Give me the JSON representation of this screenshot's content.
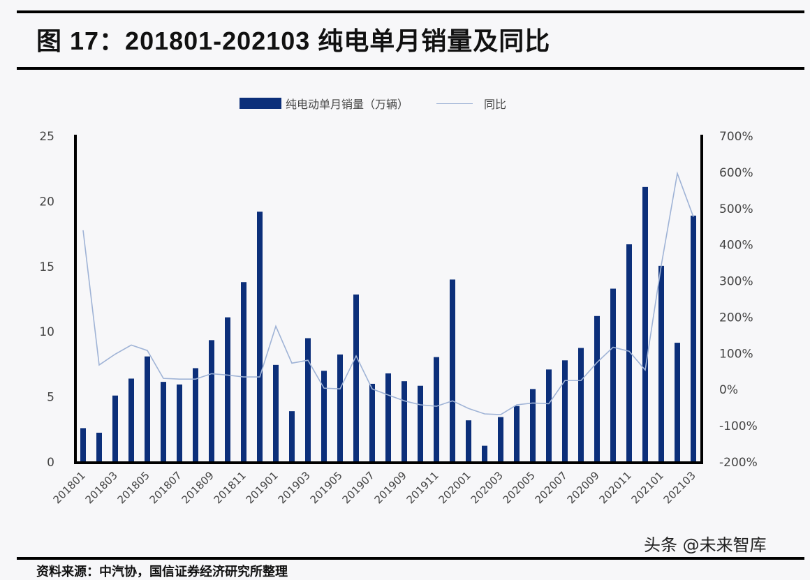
{
  "title": "图 17：201801-202103 纯电单月销量及同比",
  "legend": {
    "bar_label": "纯电动单月销量（万辆）",
    "line_label": "同比"
  },
  "watermark": "头条 @未来智库",
  "source": "资料来源：中汽协，国信证券经济研究所整理",
  "colors": {
    "bar": "#0c2f7a",
    "line": "#9fb3d6",
    "axis": "#000000",
    "text": "#444444"
  },
  "chart_data": {
    "type": "bar",
    "title": "201801-202103 纯电单月销量及同比",
    "xlabel": "",
    "ylabel": "纯电动单月销量（万辆）",
    "y2label": "同比",
    "ylim": [
      0,
      25
    ],
    "y2lim": [
      -200,
      700
    ],
    "yticks": [
      "0",
      "5",
      "10",
      "15",
      "20",
      "25"
    ],
    "y2ticks": [
      "-200%",
      "-100%",
      "0%",
      "100%",
      "200%",
      "300%",
      "400%",
      "500%",
      "600%",
      "700%"
    ],
    "xtick_labels": [
      "201801",
      "201803",
      "201805",
      "201807",
      "201809",
      "201811",
      "201901",
      "201903",
      "201905",
      "201907",
      "201909",
      "201911",
      "202001",
      "202003",
      "202005",
      "202007",
      "202009",
      "202011",
      "202101",
      "202103"
    ],
    "categories": [
      "201801",
      "201802",
      "201803",
      "201804",
      "201805",
      "201806",
      "201807",
      "201808",
      "201809",
      "201810",
      "201811",
      "201812",
      "201901",
      "201902",
      "201903",
      "201904",
      "201905",
      "201906",
      "201907",
      "201908",
      "201909",
      "201910",
      "201911",
      "201912",
      "202001",
      "202002",
      "202003",
      "202004",
      "202005",
      "202006",
      "202007",
      "202008",
      "202009",
      "202010",
      "202011",
      "202012",
      "202101",
      "202102",
      "202103"
    ],
    "series": [
      {
        "name": "纯电动单月销量（万辆）",
        "type": "bar",
        "axis": "left",
        "values": [
          2.6,
          2.25,
          5.1,
          6.4,
          8.1,
          6.15,
          5.95,
          7.2,
          9.35,
          11.1,
          13.8,
          19.2,
          7.45,
          3.9,
          9.5,
          7.0,
          8.25,
          12.85,
          6.0,
          6.8,
          6.2,
          5.85,
          8.05,
          14.0,
          3.2,
          1.25,
          3.45,
          4.3,
          5.6,
          7.1,
          7.8,
          8.75,
          11.2,
          13.3,
          16.7,
          21.1,
          15.05,
          9.15,
          18.9
        ]
      },
      {
        "name": "同比",
        "type": "line",
        "axis": "right",
        "unit": "%",
        "values": [
          440,
          68,
          98,
          123,
          108,
          31,
          29,
          29,
          44,
          40,
          35,
          35,
          175,
          73,
          81,
          4,
          2,
          93,
          2,
          -15,
          -31,
          -42,
          -46,
          -31,
          -52,
          -67,
          -69,
          -42,
          -37,
          -39,
          25,
          25,
          75,
          117,
          106,
          54,
          343,
          597,
          477
        ]
      }
    ],
    "grid": false,
    "legend_position": "top"
  }
}
